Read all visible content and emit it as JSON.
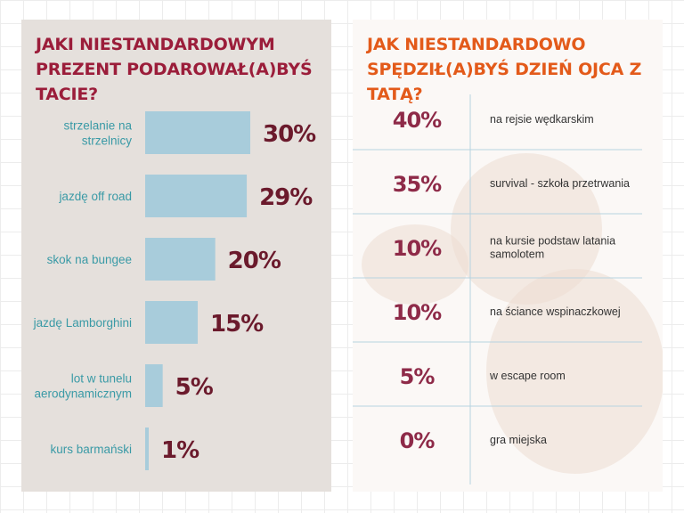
{
  "chart_data": [
    {
      "type": "bar",
      "orientation": "horizontal",
      "title": "JAKI NIESTANDARDOWYM PREZENT PODAROWAŁ(A)BYŚ TACIE?",
      "categories": [
        [
          "strzelanie na",
          "strzelnicy"
        ],
        [
          "jazdę off road"
        ],
        [
          "skok na bungee"
        ],
        [
          "jazdę Lamborghini"
        ],
        [
          "lot w tunelu",
          "aerodynamicznym"
        ],
        [
          "kurs barmański"
        ]
      ],
      "values": [
        30,
        29,
        20,
        15,
        5,
        1
      ],
      "value_labels": [
        "30%",
        "29%",
        "20%",
        "15%",
        "5%",
        "1%"
      ],
      "xlim": [
        0,
        30
      ],
      "bar_color": "#a8ccdb",
      "label_color": "#3a9aa6",
      "value_color": "#6b1a2c",
      "title_color": "#9b1d3a",
      "grid": false
    },
    {
      "type": "table",
      "title": "JAK NIESTANDARDOWO SPĘDZIŁ(A)BYŚ DZIEŃ OJCA Z TATĄ?",
      "rows": [
        {
          "value": 40,
          "percent": "40%",
          "activity": [
            "na rejsie wędkarskim"
          ]
        },
        {
          "value": 35,
          "percent": "35%",
          "activity": [
            "survival - szkoła przetrwania"
          ]
        },
        {
          "value": 10,
          "percent": "10%",
          "activity": [
            "na kursie podstaw latania",
            "samolotem"
          ]
        },
        {
          "value": 10,
          "percent": "10%",
          "activity": [
            "na ściance wspinaczkowej"
          ]
        },
        {
          "value": 5,
          "percent": "5%",
          "activity": [
            "w escape room"
          ]
        },
        {
          "value": 0,
          "percent": "0%",
          "activity": [
            "gra miejska"
          ]
        }
      ],
      "title_color": "#e35a1a",
      "percent_color": "#8e2a48",
      "divider_color": "#b7d3e0"
    }
  ]
}
